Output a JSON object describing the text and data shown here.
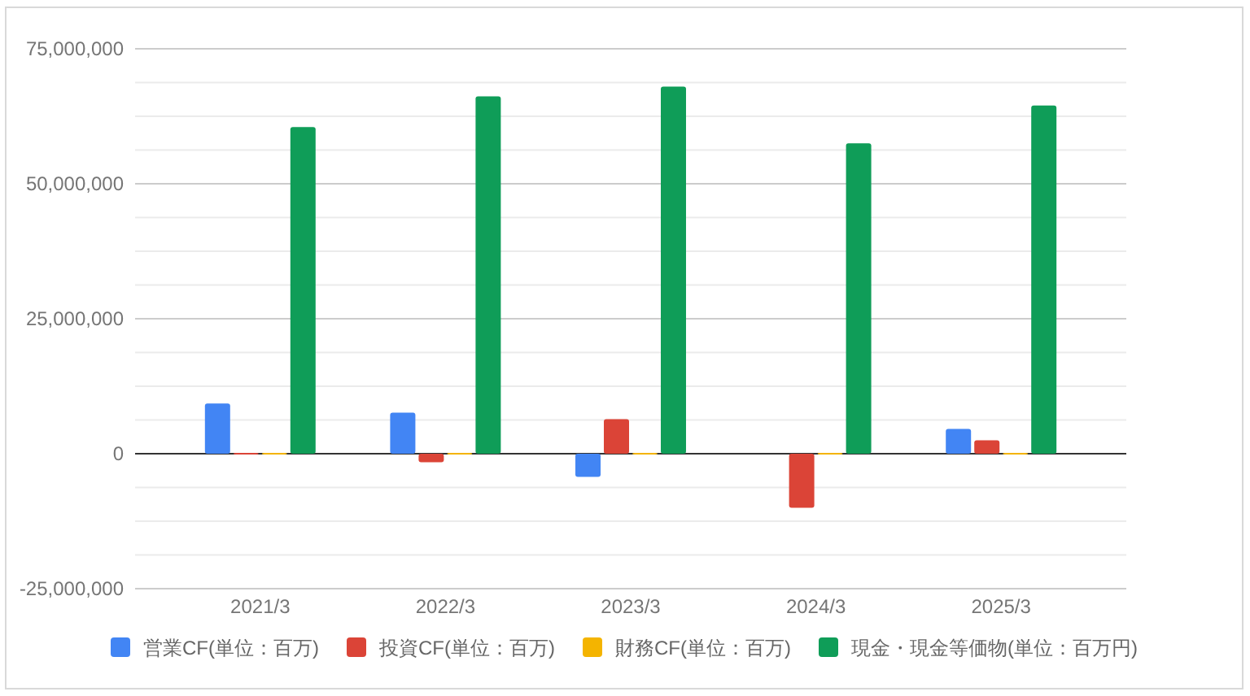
{
  "chart_data": {
    "type": "bar",
    "categories": [
      "2021/3",
      "2022/3",
      "2023/3",
      "2024/3",
      "2025/3"
    ],
    "series": [
      {
        "name": "営業CF(単位：百万)",
        "color": "#4285f4",
        "values": [
          9300000,
          7600000,
          -4300000,
          null,
          4600000
        ]
      },
      {
        "name": "投資CF(単位：百万)",
        "color": "#db4437",
        "values": [
          0,
          -1600000,
          6400000,
          -10000000,
          2500000
        ]
      },
      {
        "name": "財務CF(単位：百万)",
        "color": "#f4b400",
        "values": [
          0,
          0,
          0,
          0,
          0
        ]
      },
      {
        "name": "現金・現金等価物(単位：百万円)",
        "color": "#0f9d58",
        "values": [
          60500000,
          66200000,
          68000000,
          57500000,
          64500000
        ]
      }
    ],
    "ylim": [
      -25000000,
      75000000
    ],
    "yticks": [
      {
        "value": -25000000,
        "label": "-25,000,000"
      },
      {
        "value": -18750000,
        "label": null
      },
      {
        "value": -12500000,
        "label": null
      },
      {
        "value": -6250000,
        "label": null
      },
      0,
      {
        "value": 6250000,
        "label": null
      },
      {
        "value": 12500000,
        "label": null
      },
      {
        "value": 18750000,
        "label": null
      },
      {
        "value": 25000000,
        "label": "25,000,000"
      },
      {
        "value": 31250000,
        "label": null
      },
      {
        "value": 37500000,
        "label": null
      },
      {
        "value": 43750000,
        "label": null
      },
      {
        "value": 50000000,
        "label": "50,000,000"
      },
      {
        "value": 56250000,
        "label": null
      },
      {
        "value": 62500000,
        "label": null
      },
      {
        "value": 68750000,
        "label": null
      },
      {
        "value": 75000000,
        "label": "75,000,000"
      }
    ],
    "grid": "y",
    "legend": "bottom"
  }
}
